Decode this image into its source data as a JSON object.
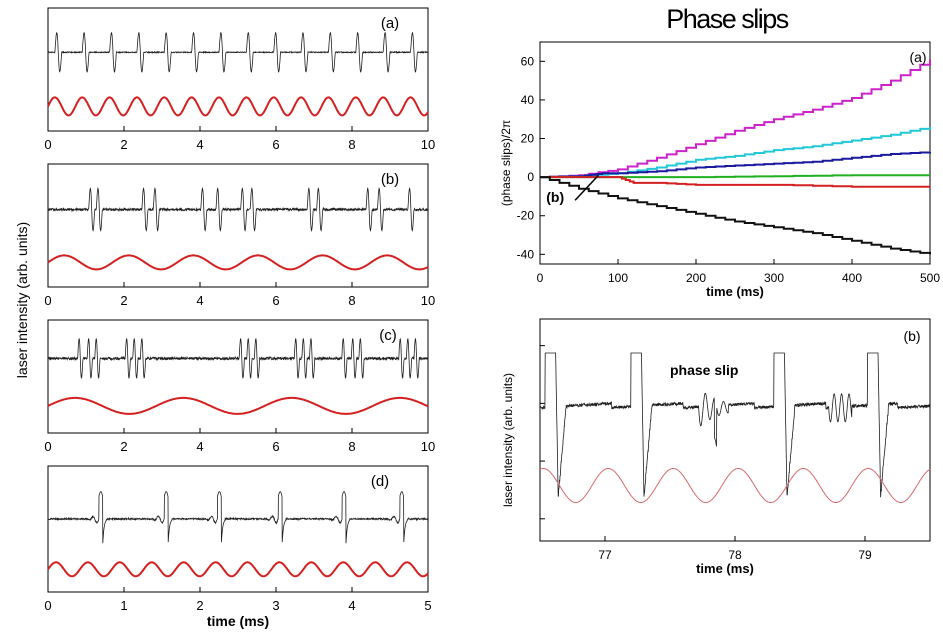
{
  "page_title": "Phase slips",
  "colors": {
    "trace": "#1e1e1e",
    "drive": "#d42020",
    "drive_light": "#d86a6a"
  },
  "chart_data": [
    {
      "id": "left_a",
      "type": "line",
      "label": "(a)",
      "xlim": [
        0,
        10
      ],
      "x_ticks": [
        "0",
        "2",
        "4",
        "6",
        "8",
        "10"
      ],
      "pulse_period": 0.72,
      "pulse_offset": 0.12,
      "drive": {
        "name": "modulation",
        "period": 0.72,
        "cycles_shown": 14
      }
    },
    {
      "id": "left_b",
      "type": "line",
      "label": "(b)",
      "xlim": [
        0,
        10
      ],
      "x_ticks": [
        "0",
        "2",
        "4",
        "6",
        "8",
        "10"
      ],
      "pulse_times": [
        1.15,
        1.35,
        2.55,
        2.85,
        4.1,
        4.5,
        5.15,
        5.4,
        6.9,
        7.15,
        8.45,
        8.75,
        9.55
      ],
      "drive": {
        "name": "modulation",
        "period": 1.7,
        "cycles_shown": 6
      }
    },
    {
      "id": "left_c",
      "type": "line",
      "label": "(c)",
      "ylabel": "laser intensity (arb. units)",
      "xlim": [
        0,
        10
      ],
      "x_ticks": [
        "0",
        "2",
        "4",
        "6",
        "8",
        "10"
      ],
      "pulse_times": [
        0.85,
        1.1,
        1.3,
        2.1,
        2.3,
        2.5,
        5.1,
        5.3,
        5.5,
        6.55,
        6.75,
        6.95,
        7.8,
        8.05,
        8.25,
        9.3,
        9.5,
        9.7
      ],
      "drive": {
        "name": "modulation",
        "period": 2.85,
        "cycles_shown": 3.5
      }
    },
    {
      "id": "left_d",
      "type": "line",
      "label": "(d)",
      "xlabel": "time (ms)",
      "xlim": [
        0,
        5
      ],
      "x_ticks": [
        "0",
        "1",
        "2",
        "3",
        "4",
        "5"
      ],
      "pulse_times": [
        0.72,
        1.58,
        2.28,
        3.08,
        3.92,
        4.68
      ],
      "drive": {
        "name": "modulation",
        "period": 0.42,
        "cycles_shown": 12
      }
    },
    {
      "id": "right_a",
      "type": "line",
      "label": "(a)",
      "xlabel": "time (ms)",
      "ylabel": "(phase slips)/2π",
      "xlim": [
        0,
        500
      ],
      "ylim": [
        -45,
        70
      ],
      "x_ticks": [
        "0",
        "100",
        "200",
        "300",
        "400",
        "500"
      ],
      "y_ticks": [
        "-40",
        "-20",
        "0",
        "20",
        "40",
        "60"
      ],
      "annotation": "(b)",
      "series": [
        {
          "color": "#cc22cc",
          "x": [
            0,
            50,
            100,
            150,
            200,
            250,
            300,
            350,
            400,
            450,
            500
          ],
          "y": [
            0,
            1,
            4,
            10,
            17,
            24,
            30,
            35,
            41,
            50,
            61
          ]
        },
        {
          "color": "#22c8d8",
          "x": [
            0,
            50,
            100,
            150,
            200,
            250,
            300,
            350,
            400,
            450,
            500
          ],
          "y": [
            0,
            0.5,
            2,
            5,
            9,
            11,
            14,
            16,
            19,
            22,
            26
          ]
        },
        {
          "color": "#1a1aa0",
          "x": [
            0,
            50,
            80,
            100,
            150,
            200,
            250,
            300,
            350,
            400,
            450,
            500
          ],
          "y": [
            0,
            0.5,
            2,
            2,
            3,
            5,
            6,
            7,
            8,
            10,
            12,
            13
          ]
        },
        {
          "color": "#20b020",
          "x": [
            0,
            100,
            150,
            200,
            300,
            400,
            500
          ],
          "y": [
            0,
            0,
            0,
            0,
            0.5,
            1,
            1
          ]
        },
        {
          "color": "#d42020",
          "x": [
            0,
            100,
            120,
            150,
            200,
            300,
            400,
            500
          ],
          "y": [
            0,
            0,
            -3,
            -3,
            -4,
            -4,
            -5,
            -5
          ]
        },
        {
          "color": "#111111",
          "x": [
            0,
            50,
            100,
            150,
            200,
            250,
            300,
            350,
            400,
            450,
            500
          ],
          "y": [
            0,
            -6,
            -11,
            -15,
            -19,
            -23,
            -26,
            -29,
            -33,
            -37,
            -40
          ]
        }
      ]
    },
    {
      "id": "right_b",
      "type": "line",
      "label": "(b)",
      "xlabel": "time (ms)",
      "ylabel": "laser intensity (arb. units)",
      "xlim": [
        76.5,
        79.5
      ],
      "x_ticks": [
        "77",
        "78",
        "79"
      ],
      "annotation": "phase slip",
      "pulse_times": [
        76.62,
        77.28,
        78.38,
        79.1
      ],
      "drive": {
        "name": "modulation",
        "period": 0.5,
        "cycles_shown": 6
      }
    }
  ]
}
